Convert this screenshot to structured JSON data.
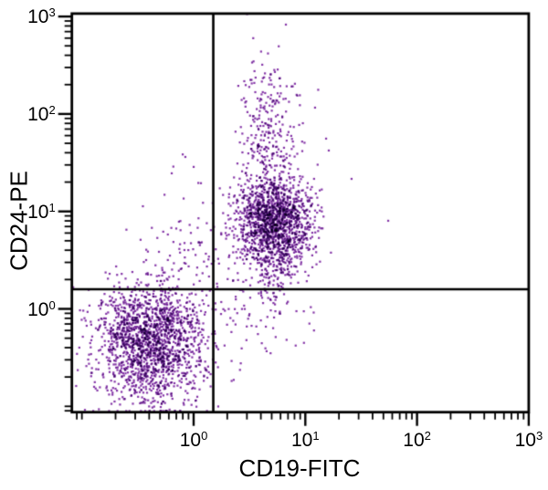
{
  "figure": {
    "kind": "flow-cytometry-quadrant-dot-plot",
    "background_color": "#ffffff",
    "frame_color": "#000000",
    "gate_line_color": "#000000"
  },
  "chart_data": {
    "type": "scatter",
    "title": "",
    "xlabel": "CD19-FITC",
    "ylabel": "CD24-PE",
    "x_scale": "log10",
    "y_scale": "log10",
    "x_range_log10": [
      -1.09,
      3.0
    ],
    "y_range_log10": [
      -1.06,
      3.03
    ],
    "tick_base": "10",
    "x_tick_exponents": [
      "0",
      "1",
      "2",
      "3"
    ],
    "y_tick_exponents": [
      "0",
      "1",
      "2",
      "3"
    ],
    "grid": false,
    "legend": false,
    "dot_color": "#8535a8",
    "dot_size_px": 2.2,
    "quadrant_gate_log10": {
      "x": 0.176,
      "y": 0.201
    },
    "quadrant_gate_values": {
      "x": 1.5,
      "y": 1.6
    },
    "random_seed": 1337,
    "populations": [
      {
        "name": "CD19-neg CD24-neg double-negative cluster",
        "n": 1700,
        "center_log10": [
          -0.385,
          -0.36
        ],
        "sigma_log10": [
          0.25,
          0.3
        ]
      },
      {
        "name": "CD19-pos CD24-pos double-positive core",
        "n": 1500,
        "center_log10": [
          0.72,
          0.9
        ],
        "sigma_log10": [
          0.175,
          0.24
        ]
      },
      {
        "name": "double-positive lower tail toward gate",
        "n": 110,
        "center_log10": [
          0.7,
          0.4
        ],
        "sigma_log10": [
          0.11,
          0.26
        ]
      },
      {
        "name": "CD19-pos CD24-high vertical tail",
        "n": 270,
        "center_log10": [
          0.67,
          1.85
        ],
        "sigma_log10": [
          0.125,
          0.4
        ]
      },
      {
        "name": "CD19-neg CD24-pos transitional smear",
        "n": 120,
        "center_log10": [
          -0.08,
          0.38
        ],
        "sigma_log10": [
          0.22,
          0.45
        ]
      },
      {
        "name": "CD19-pos CD24-neg sparse quadrant",
        "n": 70,
        "center_log10": [
          0.52,
          -0.05
        ],
        "sigma_log10": [
          0.32,
          0.24
        ]
      }
    ],
    "outliers_log10": [
      [
        1.742,
        0.904
      ],
      [
        1.414,
        1.334
      ],
      [
        0.826,
        2.917
      ],
      [
        1.087,
        2.065
      ],
      [
        1.186,
        1.747
      ],
      [
        1.21,
        1.625
      ],
      [
        -0.074,
        1.559
      ],
      [
        -0.196,
        1.391
      ],
      [
        -0.425,
        0.501
      ],
      [
        -0.752,
        0.36
      ]
    ]
  }
}
